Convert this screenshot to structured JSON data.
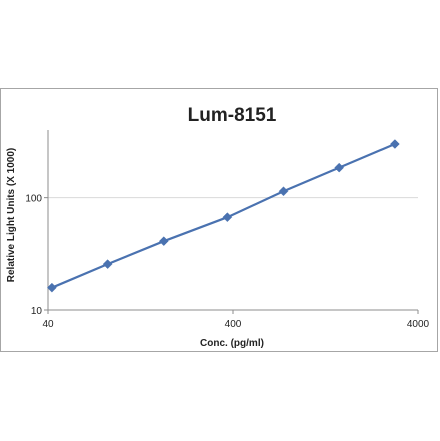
{
  "chart_data": {
    "type": "line",
    "title": "Lum-8151",
    "xlabel": "Conc. (pg/ml)",
    "ylabel": "Relative Light Units (X 1000)",
    "x_scale": "log",
    "y_scale": "log",
    "xlim": [
      40,
      4000
    ],
    "ylim": [
      10,
      400
    ],
    "x_ticks": [
      "40",
      "400",
      "4000"
    ],
    "y_ticks": [
      "10",
      "100"
    ],
    "grid": {
      "x": false,
      "y": true
    },
    "legend": "none",
    "series": [
      {
        "x": [
          42,
          84,
          169,
          373,
          750,
          1500,
          3000
        ],
        "y": [
          15.8,
          25.6,
          41,
          67,
          114,
          185,
          300
        ]
      }
    ],
    "colors": {
      "line": "#4a72b0",
      "marker": "#4a72b0",
      "grid": "#d9d9d9",
      "axis": "#8c8c8c",
      "text": "#222222",
      "frame": "#a6a6a6"
    }
  }
}
